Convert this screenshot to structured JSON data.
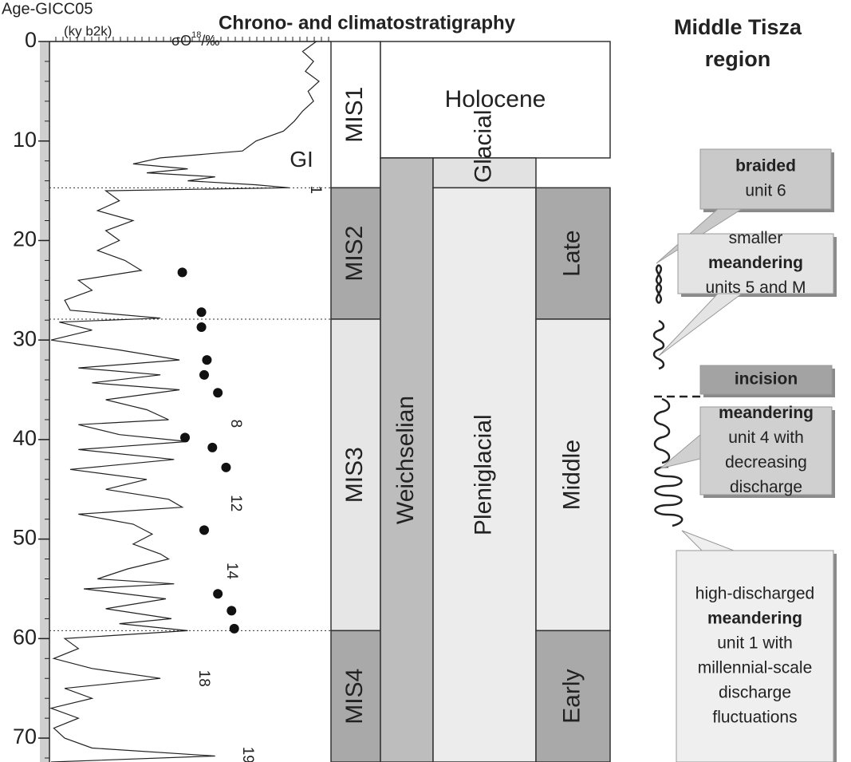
{
  "header": {
    "axis_title": "Age-GICC05",
    "axis_unit": "(ky b2k)",
    "title": "Chrono- and climatostratigraphy",
    "region_title": [
      "Middle Tisza",
      "region"
    ]
  },
  "age_axis": {
    "lim": [
      0,
      72.4
    ],
    "ticks": [
      0,
      10,
      20,
      30,
      40,
      50,
      60,
      70
    ]
  },
  "delta_o18": {
    "label": "σO",
    "sup": "18",
    "unit": "/‰",
    "ages": [
      0,
      1,
      2,
      3,
      4,
      5,
      6,
      7,
      8,
      9,
      10,
      11,
      11.7,
      12.3,
      12.8,
      13.2,
      13.6,
      14,
      14.4,
      14.7,
      15,
      16,
      17,
      18,
      19,
      20,
      21,
      22,
      23,
      24,
      25,
      26,
      27,
      27.8,
      28.2,
      29,
      30,
      31,
      32,
      32.8,
      33.5,
      34.3,
      35,
      36,
      37,
      38,
      38.5,
      39.5,
      40.2,
      41,
      42,
      43,
      44,
      45,
      46,
      46.8,
      47.5,
      48.5,
      49.5,
      50.5,
      51.5,
      52,
      53,
      54,
      54.5,
      55,
      56,
      57,
      58,
      58.5,
      59.2,
      60,
      61,
      62,
      63,
      64,
      65,
      66,
      67,
      68,
      69,
      70,
      71,
      71.8,
      72.4
    ],
    "values": [
      -34.8,
      -35.3,
      -34.9,
      -35.2,
      -34.7,
      -35.1,
      -34.9,
      -35.3,
      -35.6,
      -36.0,
      -37.0,
      -37.5,
      -40.5,
      -41.5,
      -39.5,
      -41,
      -38.5,
      -39.5,
      -37,
      -35.8,
      -42.5,
      -42,
      -42.8,
      -41.5,
      -42.5,
      -42,
      -42.8,
      -41.8,
      -41.2,
      -43.5,
      -43,
      -44,
      -43.8,
      -40.5,
      -44.2,
      -43,
      -44.5,
      -42,
      -39.8,
      -43.5,
      -40.5,
      -43,
      -39.8,
      -42.5,
      -41,
      -40.2,
      -43.5,
      -42,
      -39.5,
      -43.5,
      -40,
      -43.8,
      -41,
      -42.5,
      -40.2,
      -39.7,
      -43.5,
      -41.5,
      -40.8,
      -41.5,
      -40.5,
      -40.2,
      -41.7,
      -42.8,
      -40,
      -43.3,
      -40.3,
      -42.5,
      -40.1,
      -42,
      -39.5,
      -44,
      -43.5,
      -44.4,
      -43,
      -40.5,
      -44,
      -43,
      -44.5,
      -43.5,
      -44.4,
      -44,
      -43,
      -38.5,
      -44.5
    ]
  },
  "dated_samples": {
    "ages": [
      23.2,
      27.2,
      28.7,
      32.0,
      33.5,
      35.3,
      39.8,
      40.8,
      42.8,
      49.1,
      55.5,
      57.2,
      59.0
    ],
    "values": [
      -39.7,
      -39.0,
      -39.0,
      -38.8,
      -38.9,
      -38.4,
      -39.6,
      -38.6,
      -38.1,
      -38.9,
      -38.4,
      -37.9,
      -37.8
    ]
  },
  "interstadials": [
    {
      "label": "GI",
      "age": 12.0
    },
    {
      "label": "1",
      "age": 14.9
    },
    {
      "label": "8",
      "age": 38.4
    },
    {
      "label": "12",
      "age": 46.4
    },
    {
      "label": "14",
      "age": 53.2
    },
    {
      "label": "18",
      "age": 64.0
    },
    {
      "label": "19",
      "age": 71.7
    }
  ],
  "columns": [
    {
      "units": [
        {
          "label": "MIS1",
          "start": 0,
          "end": 14.7,
          "color": "#ffffff"
        },
        {
          "label": "MIS2",
          "start": 14.7,
          "end": 27.9,
          "color": "#a9a9a9"
        },
        {
          "label": "MIS3",
          "start": 27.9,
          "end": 59.2,
          "color": "#e6e6e6"
        },
        {
          "label": "MIS4",
          "start": 59.2,
          "end": 72.4,
          "color": "#a9a9a9"
        }
      ]
    },
    {
      "units": [
        {
          "label": "Holocene",
          "start": 0,
          "end": 11.7,
          "color": "#ffffff"
        },
        {
          "label": "Weichselian",
          "start": 11.7,
          "end": 72.4,
          "color": "#bdbdbd"
        }
      ]
    },
    {
      "units": [
        {
          "label": "Late Glacial",
          "start": 11.7,
          "end": 14.7,
          "color": "#e2e2e2"
        },
        {
          "label": "Pleniglacial",
          "start": 14.7,
          "end": 72.4,
          "color": "#ececec"
        }
      ]
    },
    {
      "units": [
        {
          "label": "Late",
          "start": 14.7,
          "end": 27.9,
          "color": "#a9a9a9"
        },
        {
          "label": "Middle",
          "start": 27.9,
          "end": 59.2,
          "color": "#ececec"
        },
        {
          "label": "Early",
          "start": 59.2,
          "end": 72.4,
          "color": "#a9a9a9"
        }
      ]
    }
  ],
  "callouts": [
    {
      "lines": [
        "braided",
        "unit 6"
      ],
      "bold_line": 0,
      "color": "#c9c9c9"
    },
    {
      "lines": [
        "smaller",
        "meandering",
        "units 5 and M"
      ],
      "bold_line": 1,
      "color": "#e4e4e4"
    },
    {
      "lines": [
        "incision"
      ],
      "bold_line": 0,
      "color": "#a3a3a3"
    },
    {
      "lines": [
        "meandering",
        "unit 4 with",
        "decreasing",
        "discharge"
      ],
      "bold_line": 0,
      "color": "#d0d0d0"
    },
    {
      "lines": [
        "high-discharged",
        "meandering",
        "unit 1 with",
        "millennial-scale",
        "discharge",
        "fluctuations"
      ],
      "bold_line": 1,
      "color": "#efefef"
    }
  ]
}
